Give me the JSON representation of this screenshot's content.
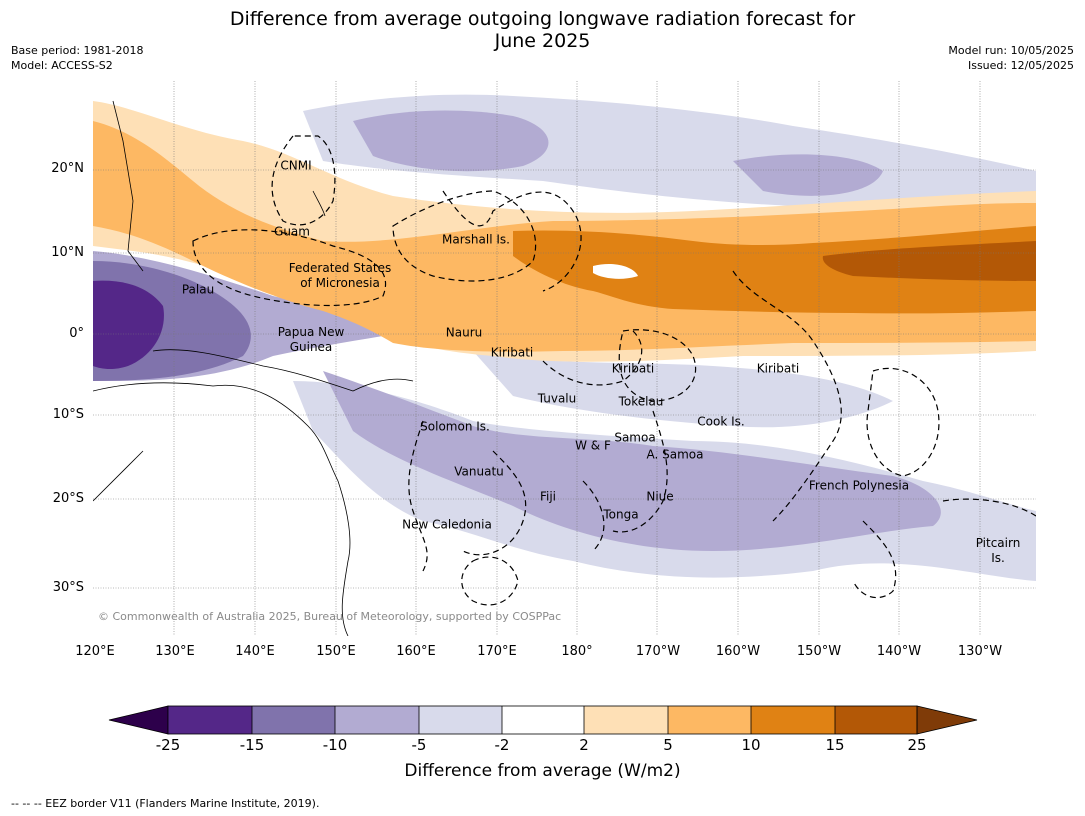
{
  "title": {
    "line1": "Difference from average outgoing longwave radiation forecast for",
    "line2": "June 2025"
  },
  "meta_left": {
    "base_period": "Base period: 1981-2018",
    "model": "Model: ACCESS-S2"
  },
  "meta_right": {
    "model_run": "Model run: 10/05/2025",
    "issued": "Issued: 12/05/2025"
  },
  "lat_labels": [
    "20°N",
    "10°N",
    "0°",
    "10°S",
    "20°S",
    "30°S"
  ],
  "lon_labels": [
    "120°E",
    "130°E",
    "140°E",
    "150°E",
    "160°E",
    "170°E",
    "180°",
    "170°W",
    "160°W",
    "150°W",
    "140°W",
    "130°W"
  ],
  "places": {
    "cnmi": "CNMI",
    "guam": "Guam",
    "marshall": "Marshall Is.",
    "fsm1": "Federated States",
    "fsm2": "of Micronesia",
    "palau": "Palau",
    "png1": "Papua New",
    "png2": "Guinea",
    "nauru": "Nauru",
    "kiribati_w": "Kiribati",
    "kiribati_c": "Kiribati",
    "kiribati_e": "Kiribati",
    "tuvalu": "Tuvalu",
    "tokelau": "Tokelau",
    "cook": "Cook Is.",
    "solomon": "Solomon Is.",
    "wf": "W & F",
    "samoa": "Samoa",
    "asamoa": "A. Samoa",
    "vanuatu": "Vanuatu",
    "fiji": "Fiji",
    "niue": "Niue",
    "tonga": "Tonga",
    "frpoly": "French Polynesia",
    "newcal": "New Caledonia",
    "pitcairn1": "Pitcairn",
    "pitcairn2": "Is."
  },
  "copyright": "© Commonwealth of Australia 2025, Bureau of Meteorology, supported by COSPPac",
  "colorbar": {
    "title": "Difference from average (W/m2)",
    "ticks": [
      "-25",
      "-15",
      "-10",
      "-5",
      "-2",
      "2",
      "5",
      "10",
      "15",
      "25"
    ],
    "colors": {
      "below_min": "#2d004b",
      "c1": "#542788",
      "c2": "#8073ac",
      "c3": "#b2abd2",
      "c4": "#d8daeb",
      "c5": "#ffffff",
      "c6": "#fee0b6",
      "c7": "#fdb863",
      "c8": "#e08214",
      "c9": "#b35806",
      "above_max": "#7f3b08"
    }
  },
  "footnote": "--  --  -- EEZ border V11 (Flanders Marine Institute, 2019)."
}
